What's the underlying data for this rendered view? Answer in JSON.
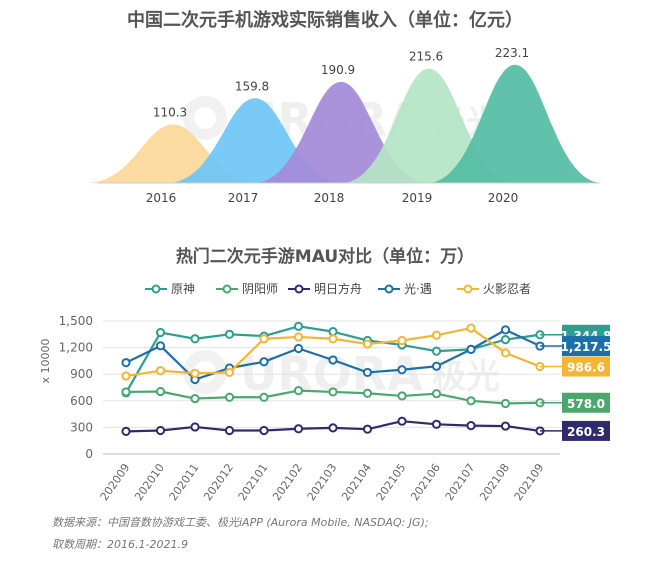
{
  "watermark": {
    "brand": "URORA",
    "cn": "极光"
  },
  "chart_data": [
    {
      "type": "area",
      "title": "中国二次元手机游戏实际销售收入（单位：亿元）",
      "categories": [
        "2016",
        "2017",
        "2018",
        "2019",
        "2020"
      ],
      "values": [
        110.3,
        159.8,
        190.9,
        215.6,
        223.1
      ],
      "value_labels": [
        "110.3",
        "159.8",
        "190.9",
        "215.6",
        "223.1"
      ],
      "colors": [
        "#fbd899",
        "#6ec6f5",
        "#a48ad8",
        "#b4e4c4",
        "#54bda4"
      ]
    },
    {
      "type": "line",
      "title": "热门二次元手游MAU对比（单位：万）",
      "ylabel": "x 10000",
      "ylim": [
        0,
        1500
      ],
      "yticks": [
        "0",
        "300",
        "600",
        "900",
        "1,200",
        "1,500"
      ],
      "ytick_values": [
        0,
        300,
        600,
        900,
        1200,
        1500
      ],
      "grid": true,
      "legend": "top",
      "x": [
        "202009",
        "202010",
        "202011",
        "202012",
        "202101",
        "202102",
        "202103",
        "202104",
        "202105",
        "202106",
        "202107",
        "202108",
        "202109"
      ],
      "series": [
        {
          "name": "原神",
          "color": "#2e9e8e",
          "values": [
            690,
            1370,
            1300,
            1350,
            1330,
            1440,
            1380,
            1280,
            1230,
            1160,
            1180,
            1290,
            1344.8
          ],
          "end_label": "1,344.8"
        },
        {
          "name": "阴阳师",
          "color": "#4aa86c",
          "values": [
            700,
            705,
            625,
            640,
            640,
            715,
            700,
            685,
            655,
            680,
            600,
            570,
            578.0
          ],
          "end_label": "578.0"
        },
        {
          "name": "明日方舟",
          "color": "#2f2a6e",
          "values": [
            255,
            265,
            305,
            265,
            265,
            285,
            295,
            280,
            370,
            335,
            320,
            315,
            260.3
          ],
          "end_label": "260.3"
        },
        {
          "name": "光·遇",
          "color": "#1d6fa8",
          "values": [
            1030,
            1220,
            840,
            970,
            1040,
            1190,
            1060,
            920,
            950,
            990,
            1180,
            1400,
            1217.5
          ],
          "end_label": "1,217.5"
        },
        {
          "name": "火影忍者",
          "color": "#f2b634",
          "values": [
            880,
            940,
            910,
            920,
            1300,
            1320,
            1300,
            1240,
            1280,
            1340,
            1420,
            1140,
            986.6
          ],
          "end_label": "986.6"
        }
      ]
    }
  ],
  "source": {
    "line1": "数据来源：中国音数协游戏工委、极光iAPP (Aurora Mobile, NASDAQ: JG);",
    "line2": "取数周期：2016.1-2021.9"
  }
}
